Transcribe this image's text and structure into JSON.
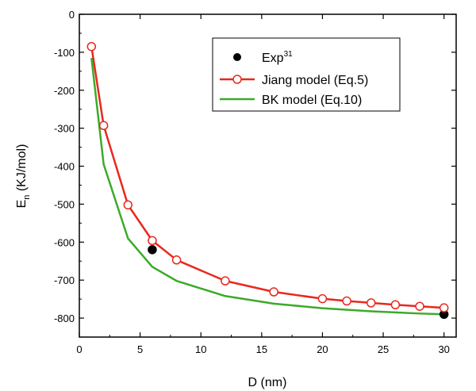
{
  "chart_data": {
    "type": "line",
    "xlabel": "D (nm)",
    "ylabel": "E",
    "ylabel_subscript": "n",
    "ylabel_unit": " (KJ/mol)",
    "xlim": [
      0,
      31
    ],
    "ylim": [
      -850,
      0
    ],
    "x_ticks": [
      0,
      5,
      10,
      15,
      20,
      25,
      30
    ],
    "y_ticks": [
      0,
      -100,
      -200,
      -300,
      -400,
      -500,
      -600,
      -700,
      -800
    ],
    "grid": false,
    "legend_position": "top-center",
    "series": [
      {
        "name": "Exp",
        "name_superscript": "31",
        "style": "markers",
        "marker": "filled-circle",
        "color": "#000000",
        "x": [
          6,
          30
        ],
        "y": [
          -620,
          -790
        ]
      },
      {
        "name": "Jiang model (Eq.5)",
        "style": "line-markers",
        "marker": "open-circle",
        "color": "#e8281e",
        "x": [
          1,
          2,
          4,
          6,
          8,
          12,
          16,
          20,
          22,
          24,
          26,
          28,
          30
        ],
        "y": [
          -85,
          -293,
          -502,
          -596,
          -647,
          -702,
          -731,
          -749,
          -755,
          -760,
          -765,
          -769,
          -773
        ]
      },
      {
        "name": "BK model (Eq.10)",
        "style": "line",
        "color": "#3caa2a",
        "x": [
          1,
          2,
          4,
          6,
          8,
          12,
          16,
          20,
          24,
          28,
          30
        ],
        "y": [
          -115,
          -395,
          -590,
          -665,
          -702,
          -742,
          -762,
          -774,
          -782,
          -788,
          -790
        ]
      }
    ]
  }
}
